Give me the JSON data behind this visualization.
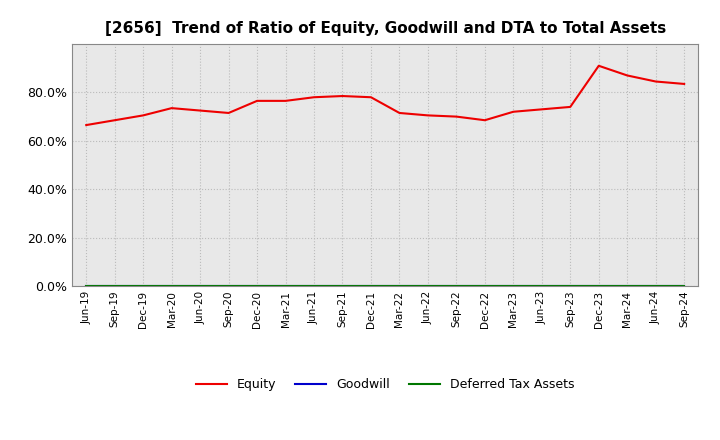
{
  "title": "[2656]  Trend of Ratio of Equity, Goodwill and DTA to Total Assets",
  "x_labels": [
    "Jun-19",
    "Sep-19",
    "Dec-19",
    "Mar-20",
    "Jun-20",
    "Sep-20",
    "Dec-20",
    "Mar-21",
    "Jun-21",
    "Sep-21",
    "Dec-21",
    "Mar-22",
    "Jun-22",
    "Sep-22",
    "Dec-22",
    "Mar-23",
    "Jun-23",
    "Sep-23",
    "Dec-23",
    "Mar-24",
    "Jun-24",
    "Sep-24"
  ],
  "equity": [
    66.5,
    68.5,
    70.5,
    73.5,
    72.5,
    71.5,
    76.5,
    76.5,
    78.0,
    78.5,
    78.0,
    71.5,
    70.5,
    70.0,
    68.5,
    72.0,
    73.0,
    74.0,
    91.0,
    87.0,
    84.5,
    83.5
  ],
  "goodwill": [
    0.0,
    0.0,
    0.0,
    0.0,
    0.0,
    0.0,
    0.0,
    0.0,
    0.0,
    0.0,
    0.0,
    0.0,
    0.0,
    0.0,
    0.0,
    0.0,
    0.0,
    0.0,
    0.0,
    0.0,
    0.0,
    0.0
  ],
  "dta": [
    0.0,
    0.0,
    0.0,
    0.0,
    0.0,
    0.0,
    0.0,
    0.0,
    0.0,
    0.0,
    0.0,
    0.0,
    0.0,
    0.0,
    0.0,
    0.0,
    0.0,
    0.0,
    0.0,
    0.0,
    0.0,
    0.0
  ],
  "equity_color": "#EE0000",
  "goodwill_color": "#0000CC",
  "dta_color": "#007700",
  "ylim": [
    0,
    100
  ],
  "yticks": [
    0,
    20,
    40,
    60,
    80
  ],
  "ytick_labels": [
    "0.0%",
    "20.0%",
    "40.0%",
    "60.0%",
    "80.0%"
  ],
  "background_color": "#FFFFFF",
  "plot_bg_color": "#E8E8E8",
  "grid_color": "#BBBBBB",
  "title_fontsize": 11,
  "legend_labels": [
    "Equity",
    "Goodwill",
    "Deferred Tax Assets"
  ]
}
